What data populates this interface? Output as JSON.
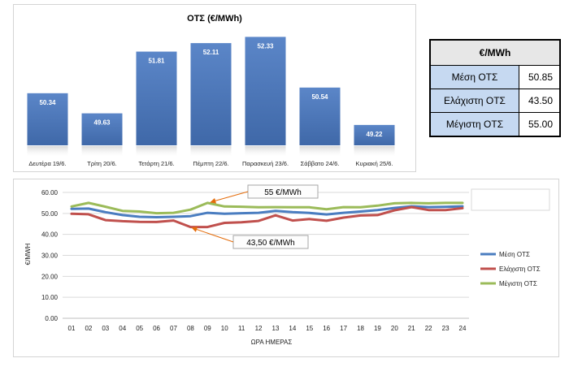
{
  "chart_data": [
    {
      "type": "bar",
      "title": "ΟΤΣ (€/MWh)",
      "categories": [
        "Δευτέρα 19/6.",
        "Τρίτη 20/6.",
        "Τετάρτη 21/6.",
        "Πέμπτη 22/6.",
        "Παρασκευή 23/6.",
        "Σάββατο 24/6.",
        "Κυριακή 25/6."
      ],
      "values": [
        50.34,
        49.63,
        51.81,
        52.11,
        52.33,
        50.54,
        49.22
      ],
      "value_labels": [
        "50.34",
        "49.63",
        "51.81",
        "52.11",
        "52.33",
        "50.54",
        "49.22"
      ],
      "ylim": [
        48.5,
        52.6
      ],
      "grid": false,
      "colors": {
        "bar": "#4a75b5",
        "bar_top": "#5b86c8",
        "label": "#ffffff"
      }
    },
    {
      "type": "line",
      "x": [
        "01",
        "02",
        "03",
        "04",
        "05",
        "06",
        "07",
        "08",
        "09",
        "10",
        "11",
        "12",
        "13",
        "14",
        "15",
        "16",
        "17",
        "18",
        "19",
        "20",
        "21",
        "22",
        "23",
        "24"
      ],
      "xlabel": "ΩΡΑ ΗΜΕΡΑΣ",
      "ylabel": "€/MWH",
      "ylim": [
        0,
        60
      ],
      "yticks": [
        "0.00",
        "10.00",
        "20.00",
        "30.00",
        "40.00",
        "50.00",
        "60.00"
      ],
      "grid": true,
      "legend_position": "right",
      "series": [
        {
          "name": "Μέση ΟΤΣ",
          "color": "#4a7dc0",
          "values": [
            52.2,
            52.3,
            50.6,
            49.2,
            48.4,
            48.2,
            48.4,
            48.7,
            50.3,
            49.8,
            50.1,
            50.3,
            51.2,
            50.6,
            50.2,
            49.5,
            50.3,
            50.9,
            51.6,
            52.6,
            53.4,
            53.0,
            53.1,
            53.4
          ]
        },
        {
          "name": "Ελάχιστη ΟΤΣ",
          "color": "#c0504d",
          "values": [
            49.8,
            49.6,
            46.8,
            46.3,
            46.0,
            45.9,
            46.6,
            43.5,
            43.5,
            45.5,
            45.8,
            46.4,
            49.1,
            46.6,
            47.3,
            46.5,
            48.0,
            49.0,
            49.2,
            51.5,
            53.0,
            51.6,
            51.6,
            52.5
          ]
        },
        {
          "name": "Μέγιστη ΟΤΣ",
          "color": "#9bbb59",
          "values": [
            53.3,
            55.0,
            53.2,
            51.2,
            50.9,
            50.1,
            50.3,
            51.8,
            55.0,
            53.3,
            53.2,
            52.9,
            53.0,
            52.9,
            52.9,
            52.0,
            53.0,
            52.9,
            53.7,
            54.8,
            55.0,
            54.8,
            55.0,
            55.0
          ]
        }
      ],
      "annotations": [
        {
          "text": "55 €/MWh",
          "x": "09",
          "y": 55.0
        },
        {
          "text": "43,50 €/MWh",
          "x": "08",
          "y": 43.5
        }
      ]
    }
  ],
  "stats_table": {
    "header": "€/MWh",
    "rows": [
      {
        "label": "Μέση ΟΤΣ",
        "value": "50.85"
      },
      {
        "label": "Ελάχιστη ΟΤΣ",
        "value": "43.50"
      },
      {
        "label": "Μέγιστη ΟΤΣ",
        "value": "55.00"
      }
    ]
  }
}
